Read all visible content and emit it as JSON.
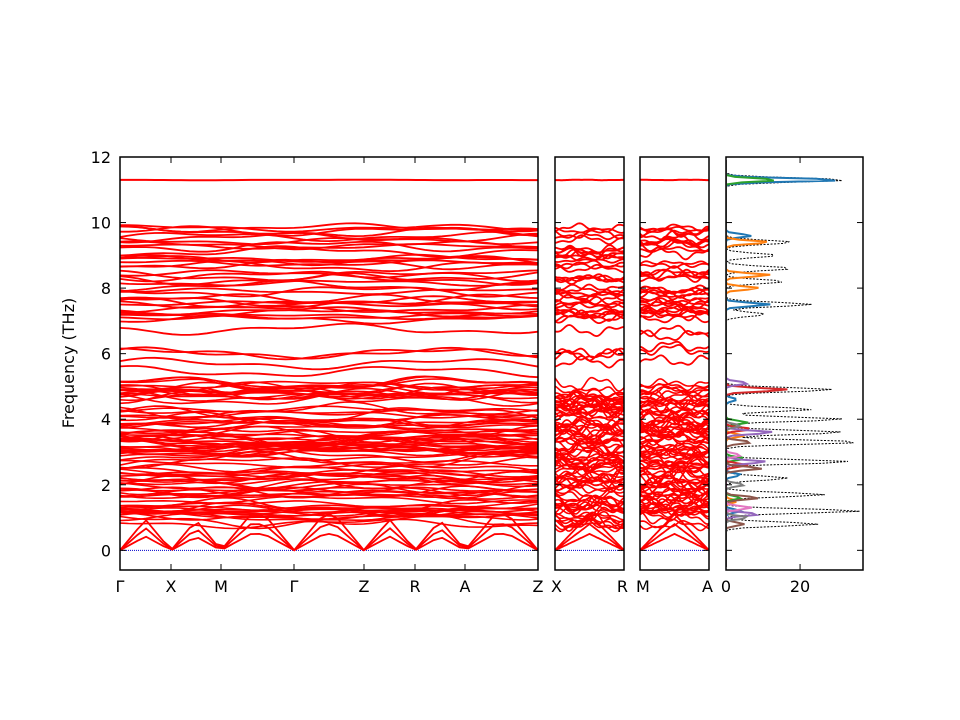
{
  "chart_data": {
    "type": "line",
    "ylabel": "Frequency (THz)",
    "ylim": [
      -0.6,
      12
    ],
    "yticks": [
      0,
      2,
      4,
      6,
      8,
      10,
      12
    ],
    "colors": {
      "band": "#ff0000",
      "zero_line": "#0000cc",
      "dos_total": "#000000"
    },
    "band_panels": [
      {
        "labels": [
          "Γ",
          "X",
          "M",
          "Γ",
          "Z",
          "R",
          "A",
          "Z"
        ]
      },
      {
        "labels": [
          "X",
          "R"
        ]
      },
      {
        "labels": [
          "M",
          "A"
        ]
      }
    ],
    "dos_panel": {
      "xlim": [
        0,
        37
      ],
      "xticks": [
        0,
        20
      ],
      "total_peaks": [
        {
          "f": 11.3,
          "v": 34
        },
        {
          "f": 9.4,
          "v": 22
        },
        {
          "f": 9.0,
          "v": 15
        },
        {
          "f": 8.6,
          "v": 18
        },
        {
          "f": 8.2,
          "v": 16
        },
        {
          "f": 7.5,
          "v": 27
        },
        {
          "f": 7.2,
          "v": 14
        },
        {
          "f": 4.9,
          "v": 35
        },
        {
          "f": 4.3,
          "v": 27
        },
        {
          "f": 4.0,
          "v": 34
        },
        {
          "f": 3.6,
          "v": 32
        },
        {
          "f": 3.3,
          "v": 37
        },
        {
          "f": 2.7,
          "v": 37
        },
        {
          "f": 2.2,
          "v": 22
        },
        {
          "f": 1.7,
          "v": 30
        },
        {
          "f": 1.2,
          "v": 37
        },
        {
          "f": 0.8,
          "v": 25
        }
      ],
      "projected": [
        {
          "name": "",
          "color": "#1f77b4",
          "peaks": [
            {
              "f": 11.3,
              "v": 32
            },
            {
              "f": 9.6,
              "v": 7
            },
            {
              "f": 7.5,
              "v": 12
            },
            {
              "f": 4.6,
              "v": 3
            },
            {
              "f": 2.3,
              "v": 4
            },
            {
              "f": 1.2,
              "v": 4
            }
          ]
        },
        {
          "name": "",
          "color": "#ff7f0e",
          "peaks": [
            {
              "f": 9.4,
              "v": 12
            },
            {
              "f": 8.4,
              "v": 12
            },
            {
              "f": 8.0,
              "v": 9
            },
            {
              "f": 3.5,
              "v": 5
            },
            {
              "f": 1.5,
              "v": 3
            }
          ]
        },
        {
          "name": "",
          "color": "#2ca02c",
          "peaks": [
            {
              "f": 11.3,
              "v": 14
            },
            {
              "f": 3.9,
              "v": 6
            },
            {
              "f": 2.8,
              "v": 5
            },
            {
              "f": 1.6,
              "v": 4
            }
          ]
        },
        {
          "name": "",
          "color": "#d62728",
          "peaks": [
            {
              "f": 4.9,
              "v": 17
            },
            {
              "f": 3.7,
              "v": 7
            },
            {
              "f": 2.6,
              "v": 6
            }
          ]
        },
        {
          "name": "",
          "color": "#9467bd",
          "peaks": [
            {
              "f": 5.1,
              "v": 6
            },
            {
              "f": 3.6,
              "v": 13
            },
            {
              "f": 2.7,
              "v": 11
            },
            {
              "f": 1.1,
              "v": 9
            }
          ]
        },
        {
          "name": "",
          "color": "#8c564b",
          "peaks": [
            {
              "f": 3.3,
              "v": 7
            },
            {
              "f": 2.5,
              "v": 10
            },
            {
              "f": 1.6,
              "v": 9
            },
            {
              "f": 0.8,
              "v": 5
            }
          ]
        },
        {
          "name": "",
          "color": "#e377c2",
          "peaks": [
            {
              "f": 2.9,
              "v": 4
            },
            {
              "f": 1.3,
              "v": 7
            }
          ]
        },
        {
          "name": "",
          "color": "#7f7f7f",
          "peaks": [
            {
              "f": 3.8,
              "v": 4
            },
            {
              "f": 2.0,
              "v": 5
            },
            {
              "f": 1.0,
              "v": 6
            }
          ]
        }
      ]
    }
  }
}
